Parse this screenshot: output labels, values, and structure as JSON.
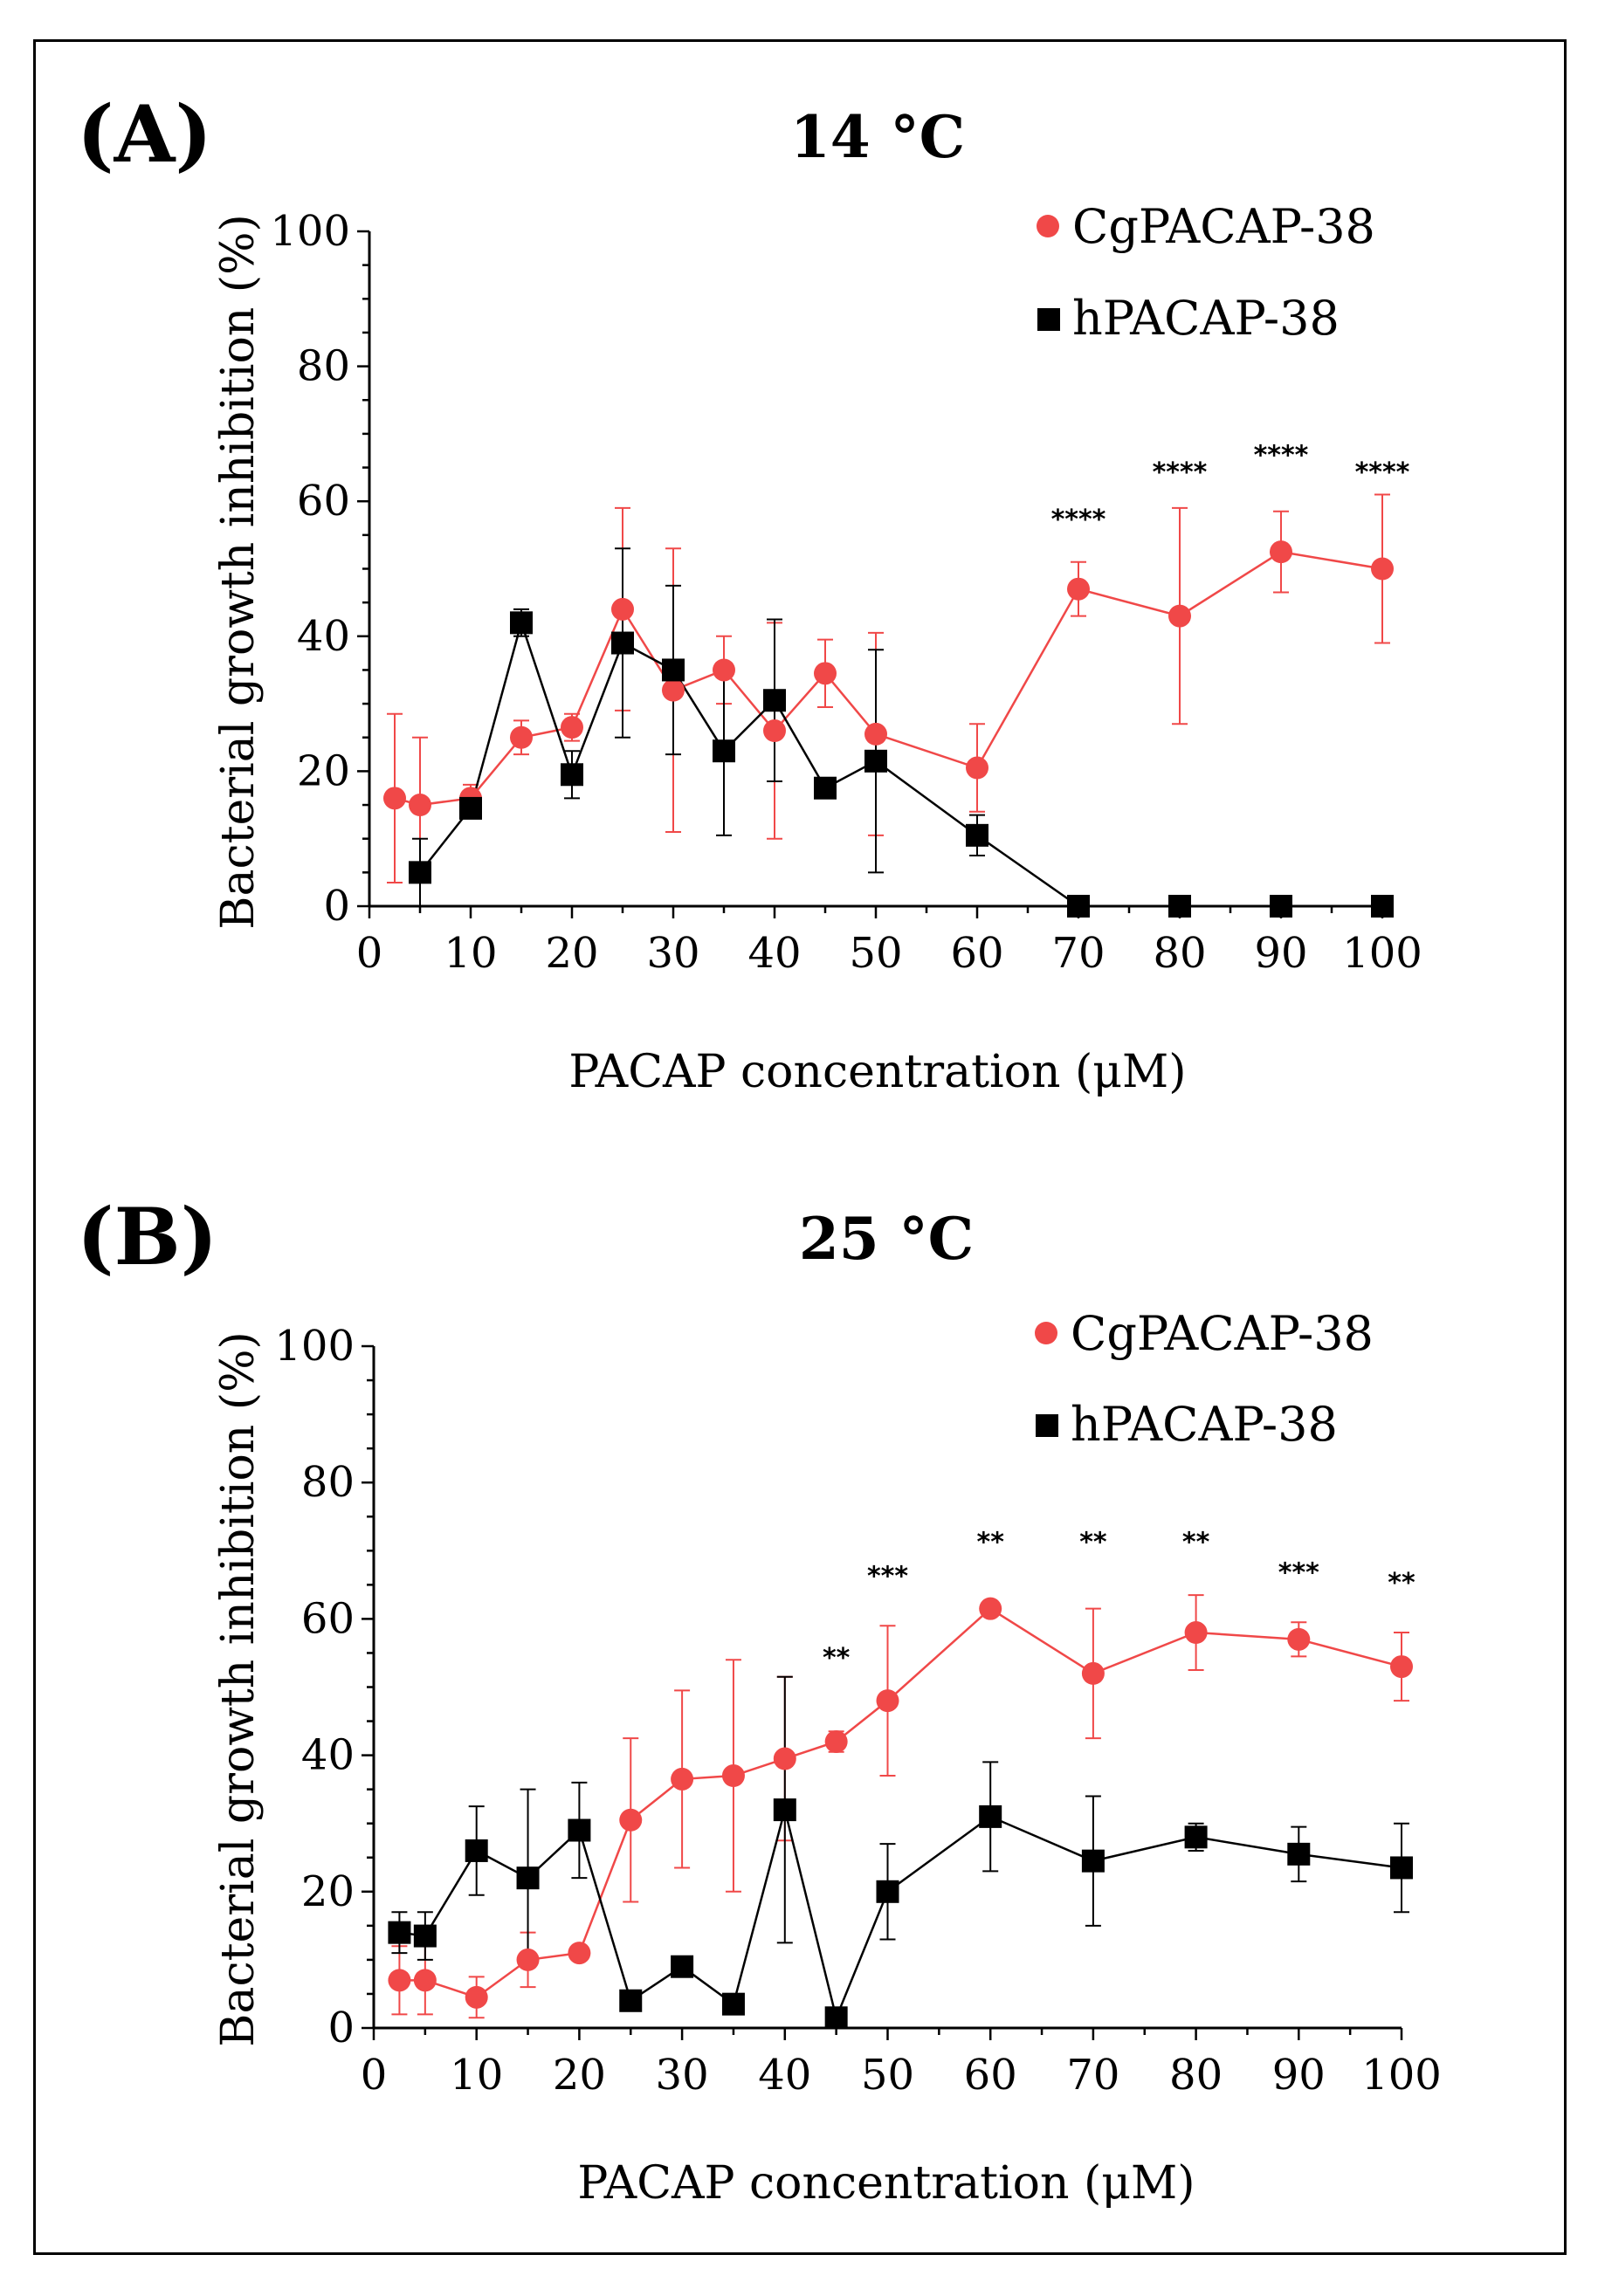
{
  "chart_data": [
    {
      "type": "line",
      "panel_label": "(A)",
      "title": "14 °C",
      "xlabel": "PACAP concentration (μM)",
      "ylabel": "Bacterial growth inhibition (%)",
      "xlim": [
        0,
        100
      ],
      "ylim": [
        0,
        100
      ],
      "x_ticks": [
        0,
        10,
        20,
        30,
        40,
        50,
        60,
        70,
        80,
        90,
        100
      ],
      "y_ticks": [
        0,
        20,
        40,
        60,
        80,
        100
      ],
      "x_tick_labels": [
        "0",
        "10",
        "20",
        "30",
        "40",
        "50",
        "60",
        "70",
        "80",
        "90",
        "100"
      ],
      "y_tick_labels": [
        "0",
        "20",
        "40",
        "60",
        "80",
        "100"
      ],
      "legend_position": "top-right",
      "series": [
        {
          "name": "CgPACAP-38",
          "color": "#f04848",
          "marker": "circle",
          "x": [
            2.5,
            5,
            10,
            15,
            20,
            25,
            30,
            35,
            40,
            45,
            50,
            60,
            70,
            80,
            90,
            100
          ],
          "values": [
            16,
            15,
            16,
            25,
            26.5,
            44,
            32,
            35,
            26,
            34.5,
            25.5,
            20.5,
            47,
            43,
            52.5,
            50
          ],
          "error": [
            12.5,
            10,
            2,
            2.5,
            2,
            15,
            21,
            5,
            16,
            5,
            15,
            6.5,
            4,
            16,
            6,
            11
          ]
        },
        {
          "name": "hPACAP-38",
          "color": "#000000",
          "marker": "square",
          "x": [
            5,
            10,
            15,
            20,
            25,
            30,
            35,
            40,
            45,
            50,
            60,
            70,
            80,
            90,
            100
          ],
          "values": [
            5,
            14.5,
            42,
            19.5,
            39,
            35,
            23,
            30.5,
            17.5,
            21.5,
            10.5,
            0,
            0,
            0,
            0
          ],
          "error": [
            5,
            1.5,
            2,
            3.5,
            14,
            12.5,
            12.5,
            12,
            0,
            16.5,
            3,
            0,
            0,
            0,
            0
          ]
        }
      ],
      "annotations": [
        {
          "x": 70,
          "y": 56,
          "text": "****"
        },
        {
          "x": 80,
          "y": 63,
          "text": "****"
        },
        {
          "x": 90,
          "y": 65.5,
          "text": "****"
        },
        {
          "x": 100,
          "y": 63,
          "text": "****"
        }
      ]
    },
    {
      "type": "line",
      "panel_label": "(B)",
      "title": "25 °C",
      "xlabel": "PACAP concentration (μM)",
      "ylabel": "Bacterial growth inhibition (%)",
      "xlim": [
        0,
        100
      ],
      "ylim": [
        0,
        100
      ],
      "x_ticks": [
        0,
        10,
        20,
        30,
        40,
        50,
        60,
        70,
        80,
        90,
        100
      ],
      "y_ticks": [
        0,
        20,
        40,
        60,
        80,
        100
      ],
      "x_tick_labels": [
        "0",
        "10",
        "20",
        "30",
        "40",
        "50",
        "60",
        "70",
        "80",
        "90",
        "100"
      ],
      "y_tick_labels": [
        "0",
        "20",
        "40",
        "60",
        "80",
        "100"
      ],
      "legend_position": "top-right",
      "series": [
        {
          "name": "CgPACAP-38",
          "color": "#f04848",
          "marker": "circle",
          "x": [
            2.5,
            5,
            10,
            15,
            20,
            25,
            30,
            35,
            40,
            45,
            50,
            60,
            70,
            80,
            90,
            100
          ],
          "values": [
            7,
            7,
            4.5,
            10,
            11,
            30.5,
            36.5,
            37,
            39.5,
            42,
            48,
            61.5,
            52,
            58,
            57,
            53
          ],
          "error": [
            5,
            5,
            3,
            4,
            1,
            12,
            13,
            17,
            12,
            1.5,
            11,
            0.5,
            9.5,
            5.5,
            2.5,
            5
          ]
        },
        {
          "name": "hPACAP-38",
          "color": "#000000",
          "marker": "square",
          "x": [
            2.5,
            5,
            10,
            15,
            20,
            25,
            30,
            35,
            40,
            45,
            50,
            60,
            70,
            80,
            90,
            100
          ],
          "values": [
            14,
            13.5,
            26,
            22,
            29,
            4,
            9,
            3.5,
            32,
            1.5,
            20,
            31,
            24.5,
            28,
            25.5,
            23.5
          ],
          "error": [
            3,
            3.5,
            6.5,
            13,
            7,
            0,
            0,
            0,
            19.5,
            0,
            7,
            8,
            9.5,
            2,
            4,
            6.5
          ]
        }
      ],
      "annotations": [
        {
          "x": 45,
          "y": 53,
          "text": "**"
        },
        {
          "x": 50,
          "y": 65,
          "text": "***"
        },
        {
          "x": 60,
          "y": 70,
          "text": "**"
        },
        {
          "x": 70,
          "y": 70,
          "text": "**"
        },
        {
          "x": 80,
          "y": 70,
          "text": "**"
        },
        {
          "x": 90,
          "y": 65.5,
          "text": "***"
        },
        {
          "x": 100,
          "y": 64,
          "text": "**"
        }
      ]
    }
  ]
}
